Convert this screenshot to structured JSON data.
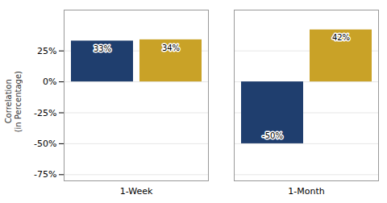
{
  "chart_data": {
    "type": "bar",
    "categories": [
      "1-Week",
      "1-Month"
    ],
    "series": [
      {
        "color": "#1f3e6e",
        "values": [
          33,
          -50
        ],
        "value_labels": [
          "33%",
          "-50%"
        ]
      },
      {
        "color": "#c9a227",
        "values": [
          34,
          42
        ],
        "value_labels": [
          "34%",
          "42%"
        ]
      }
    ],
    "ylabel": "Correlation\n(in Percentage)",
    "ylim": [
      -80,
      58
    ],
    "yticks": [
      {
        "value": 25,
        "label": "25%"
      },
      {
        "value": 0,
        "label": "0%"
      },
      {
        "value": -25,
        "label": "-25%"
      },
      {
        "value": -50,
        "label": "-50%"
      },
      {
        "value": -75,
        "label": "-75%"
      }
    ],
    "grid": true,
    "data_labels": true
  }
}
